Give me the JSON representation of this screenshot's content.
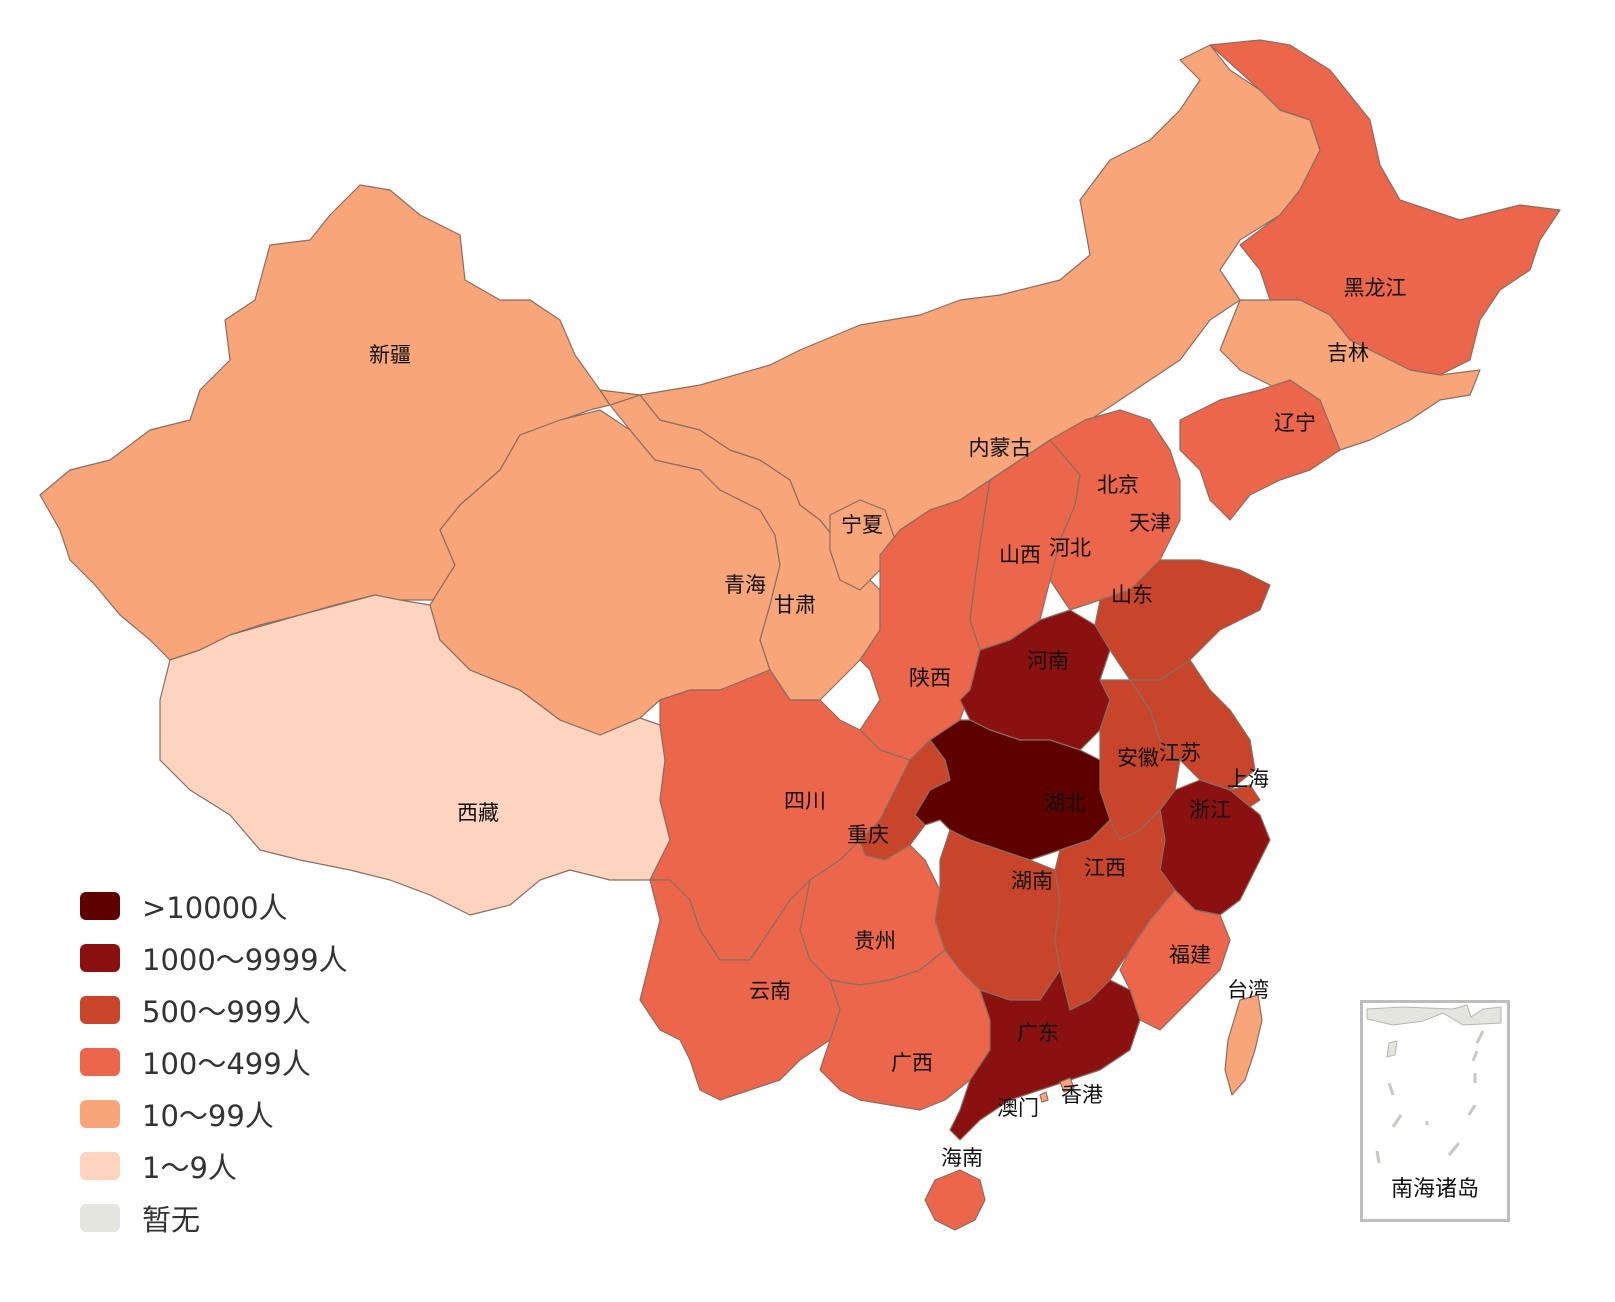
{
  "legend": [
    {
      "label": ">10000人",
      "color": "#5f0000"
    },
    {
      "label": "1000～9999人",
      "color": "#8b1111"
    },
    {
      "label": "500～999人",
      "color": "#c8442a"
    },
    {
      "label": "100～499人",
      "color": "#eb664b"
    },
    {
      "label": "10～99人",
      "color": "#f8a57a"
    },
    {
      "label": "1～9人",
      "color": "#fdd4c0"
    },
    {
      "label": "暂无",
      "color": "#e5e5e0"
    }
  ],
  "inset_label": "南海诸岛",
  "provinces": [
    {
      "name": "新疆",
      "level": 4
    },
    {
      "name": "西藏",
      "level": 5
    },
    {
      "name": "青海",
      "level": 4
    },
    {
      "name": "甘肃",
      "level": 4
    },
    {
      "name": "内蒙古",
      "level": 4
    },
    {
      "name": "宁夏",
      "level": 4
    },
    {
      "name": "黑龙江",
      "level": 3
    },
    {
      "name": "吉林",
      "level": 4
    },
    {
      "name": "辽宁",
      "level": 3
    },
    {
      "name": "北京",
      "level": 3
    },
    {
      "name": "天津",
      "level": 3
    },
    {
      "name": "河北",
      "level": 3
    },
    {
      "name": "山西",
      "level": 3
    },
    {
      "name": "山东",
      "level": 2
    },
    {
      "name": "陕西",
      "level": 3
    },
    {
      "name": "河南",
      "level": 1
    },
    {
      "name": "江苏",
      "level": 2
    },
    {
      "name": "安徽",
      "level": 2
    },
    {
      "name": "上海",
      "level": 2
    },
    {
      "name": "湖北",
      "level": 0
    },
    {
      "name": "浙江",
      "level": 1
    },
    {
      "name": "四川",
      "level": 3
    },
    {
      "name": "重庆",
      "level": 2
    },
    {
      "name": "湖南",
      "level": 2
    },
    {
      "name": "江西",
      "level": 2
    },
    {
      "name": "贵州",
      "level": 3
    },
    {
      "name": "云南",
      "level": 3
    },
    {
      "name": "福建",
      "level": 3
    },
    {
      "name": "台湾",
      "level": 4
    },
    {
      "name": "广西",
      "level": 3
    },
    {
      "name": "广东",
      "level": 1
    },
    {
      "name": "香港",
      "level": 4
    },
    {
      "name": "澳门",
      "level": 4
    },
    {
      "name": "海南",
      "level": 3
    }
  ]
}
